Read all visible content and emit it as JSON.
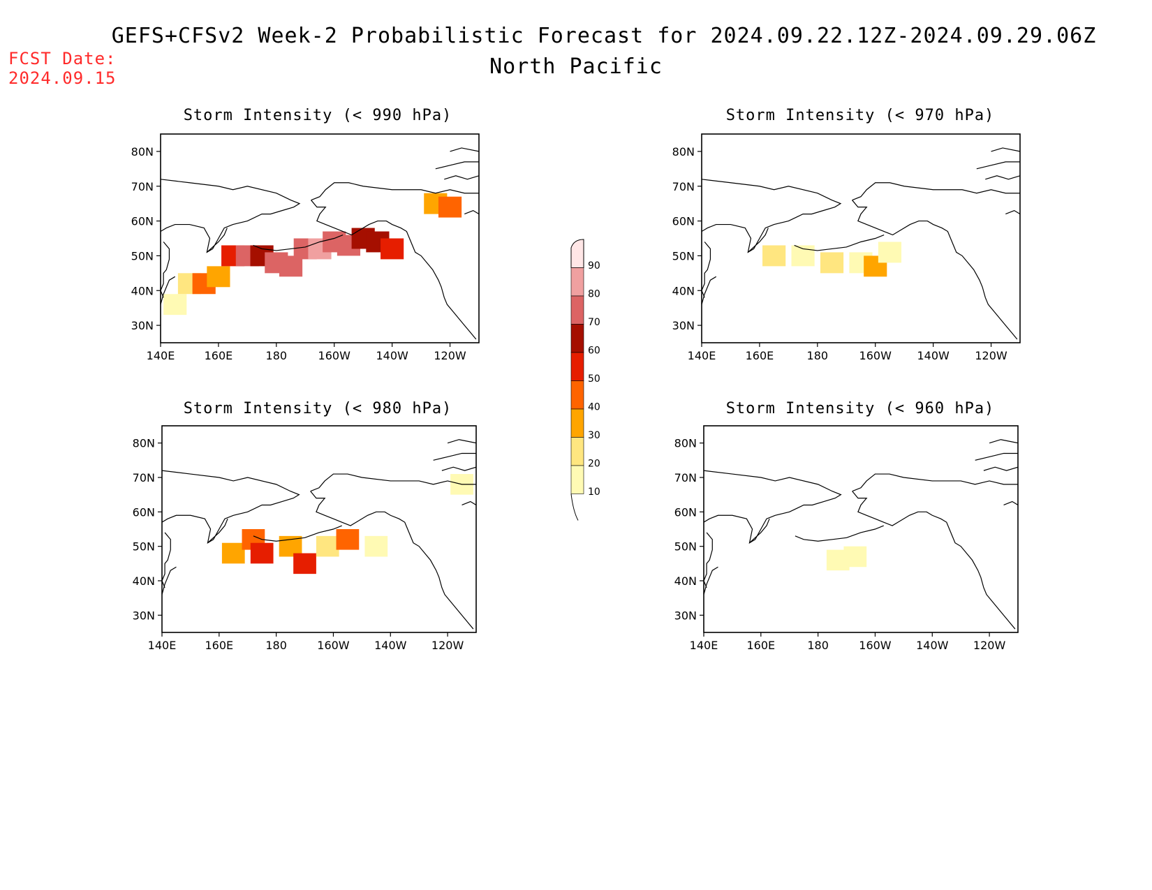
{
  "title": "GEFS+CFSv2 Week-2 Probabilistic Forecast for 2024.09.22.12Z-2024.09.29.06Z",
  "region": "North Pacific",
  "fcst_label": "FCST Date:",
  "fcst_date": "2024.09.15",
  "colors": {
    "10": "#fffab4",
    "20": "#ffe680",
    "30": "#ffa500",
    "40": "#ff6400",
    "50": "#e61e00",
    "60": "#a50f00",
    "70": "#dc6464",
    "80": "#f0a0a0",
    "90": "#ffe6e6"
  },
  "colorbar": {
    "levels": [
      "10",
      "20",
      "30",
      "40",
      "50",
      "60",
      "70",
      "80",
      "90"
    ]
  },
  "x_ticks": [
    "140E",
    "160E",
    "180",
    "160W",
    "140W",
    "120W"
  ],
  "y_ticks": [
    "80N",
    "70N",
    "60N",
    "50N",
    "40N",
    "30N"
  ],
  "panels": [
    {
      "title": "Storm Intensity (< 990 hPa)",
      "chart_data": {
        "type": "heatmap",
        "units": "probability (%)",
        "cells": [
          {
            "lon": 145,
            "lat": 36,
            "prob": 10
          },
          {
            "lon": 150,
            "lat": 42,
            "prob": 20
          },
          {
            "lon": 155,
            "lat": 42,
            "prob": 40
          },
          {
            "lon": 160,
            "lat": 44,
            "prob": 30
          },
          {
            "lon": 165,
            "lat": 50,
            "prob": 50
          },
          {
            "lon": 170,
            "lat": 50,
            "prob": 70
          },
          {
            "lon": 175,
            "lat": 50,
            "prob": 60
          },
          {
            "lon": 180,
            "lat": 48,
            "prob": 70
          },
          {
            "lon": 185,
            "lat": 47,
            "prob": 70
          },
          {
            "lon": 190,
            "lat": 52,
            "prob": 70
          },
          {
            "lon": 195,
            "lat": 52,
            "prob": 80
          },
          {
            "lon": 200,
            "lat": 54,
            "prob": 70
          },
          {
            "lon": 205,
            "lat": 53,
            "prob": 70
          },
          {
            "lon": 210,
            "lat": 55,
            "prob": 60
          },
          {
            "lon": 215,
            "lat": 54,
            "prob": 60
          },
          {
            "lon": 220,
            "lat": 52,
            "prob": 50
          },
          {
            "lon": 235,
            "lat": 65,
            "prob": 30
          },
          {
            "lon": 240,
            "lat": 64,
            "prob": 40
          }
        ]
      }
    },
    {
      "title": "Storm Intensity (< 970 hPa)",
      "chart_data": {
        "type": "heatmap",
        "units": "probability (%)",
        "cells": [
          {
            "lon": 165,
            "lat": 50,
            "prob": 20
          },
          {
            "lon": 175,
            "lat": 50,
            "prob": 10
          },
          {
            "lon": 185,
            "lat": 48,
            "prob": 20
          },
          {
            "lon": 195,
            "lat": 48,
            "prob": 10
          },
          {
            "lon": 200,
            "lat": 47,
            "prob": 30
          },
          {
            "lon": 205,
            "lat": 51,
            "prob": 10
          }
        ]
      }
    },
    {
      "title": "Storm Intensity (< 980 hPa)",
      "chart_data": {
        "type": "heatmap",
        "units": "probability (%)",
        "cells": [
          {
            "lon": 165,
            "lat": 48,
            "prob": 30
          },
          {
            "lon": 172,
            "lat": 52,
            "prob": 40
          },
          {
            "lon": 175,
            "lat": 48,
            "prob": 50
          },
          {
            "lon": 185,
            "lat": 50,
            "prob": 30
          },
          {
            "lon": 190,
            "lat": 45,
            "prob": 50
          },
          {
            "lon": 198,
            "lat": 50,
            "prob": 20
          },
          {
            "lon": 205,
            "lat": 52,
            "prob": 40
          },
          {
            "lon": 215,
            "lat": 50,
            "prob": 10
          },
          {
            "lon": 245,
            "lat": 68,
            "prob": 10
          }
        ]
      }
    },
    {
      "title": "Storm Intensity (< 960 hPa)",
      "chart_data": {
        "type": "heatmap",
        "units": "probability (%)",
        "cells": [
          {
            "lon": 187,
            "lat": 46,
            "prob": 10
          },
          {
            "lon": 193,
            "lat": 47,
            "prob": 10
          }
        ]
      }
    }
  ]
}
